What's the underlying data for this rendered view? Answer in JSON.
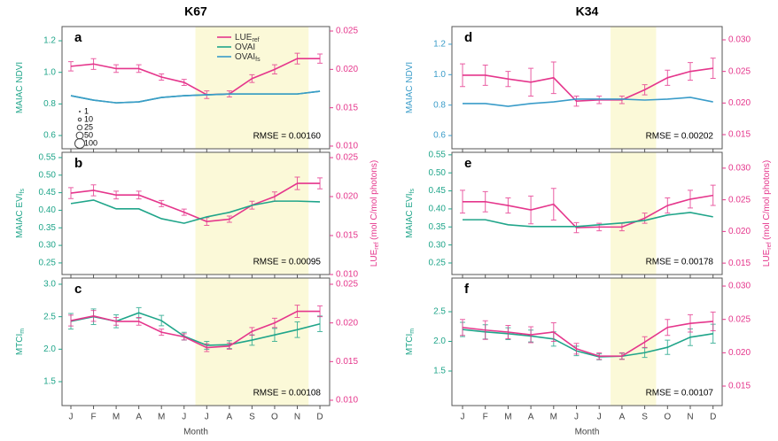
{
  "chart_data": [
    {
      "type": "line",
      "title": "K67",
      "xlabel": "Month",
      "categories": [
        "J",
        "F",
        "M",
        "A",
        "M",
        "J",
        "J",
        "A",
        "S",
        "O",
        "N",
        "D"
      ],
      "panels": [
        {
          "label": "a",
          "ylabel": "MAIAC NDVI",
          "ylim": [
            0.516,
            1.29
          ],
          "yticks": [
            0.6,
            0.8,
            {
              "value": 1.0,
              "label": "1.0"
            },
            1.2
          ],
          "y2lim": [
            0.00965,
            0.02558
          ],
          "y2ticks": [
            {
              "value": 0.01,
              "label": "0.010"
            },
            0.015,
            {
              "value": 0.02,
              "label": "0.020"
            },
            0.025
          ],
          "annotation": "RMSE = 0.00160",
          "legend": true,
          "size_legend": [
            1,
            10,
            25,
            50,
            100
          ],
          "series": [
            {
              "name": "LUE",
              "name_sub": "ref",
              "color": "#e5368c",
              "axis": "y2",
              "values": [
                0.0204,
                0.0207,
                0.0201,
                0.0201,
                0.019,
                0.0183,
                0.0167,
                0.0168,
                0.0188,
                0.02,
                0.0214,
                0.0214
              ],
              "errors": [
                0.0006,
                0.0007,
                0.0005,
                0.0005,
                0.0004,
                0.0004,
                0.0005,
                0.0004,
                0.0005,
                0.0006,
                0.0007,
                0.0006
              ]
            },
            {
              "name": "OVAI",
              "color": "#20a58a",
              "values": [
                0.852,
                0.824,
                0.807,
                0.813,
                0.841,
                0.852,
                0.858,
                0.863,
                0.863,
                0.863,
                0.863,
                0.88
              ]
            },
            {
              "name": "OVAI",
              "name_sub": "fs",
              "color": "#3a9cc9",
              "values": [
                0.852,
                0.824,
                0.807,
                0.813,
                0.841,
                0.852,
                0.858,
                0.863,
                0.863,
                0.863,
                0.863,
                0.88
              ]
            }
          ]
        },
        {
          "label": "b",
          "ylabel": "MAIAC EVI",
          "ylabel_sub": "fs",
          "ylim": [
            0.217,
            0.565
          ],
          "yticks": [
            0.25,
            {
              "value": 0.3,
              "label": "0.30"
            },
            0.35,
            {
              "value": 0.4,
              "label": "0.40"
            },
            0.45,
            {
              "value": 0.5,
              "label": "0.50"
            },
            0.55
          ],
          "y2lim": [
            0.01,
            0.02568
          ],
          "y2ticks": [
            {
              "value": 0.01,
              "label": "0.010"
            },
            0.015,
            {
              "value": 0.02,
              "label": "0.020"
            },
            0.025
          ],
          "y2label": {
            "text": "LUE",
            "sub": "ref",
            "rest": " (mol C/mol photons)"
          },
          "annotation": "RMSE = 0.00095",
          "series": [
            {
              "name": "LUE",
              "name_sub": "ref",
              "color": "#e5368c",
              "axis": "y2",
              "values": [
                0.02045,
                0.0208,
                0.0202,
                0.0202,
                0.0191,
                0.018,
                0.0168,
                0.0171,
                0.0189,
                0.02,
                0.0217,
                0.0217
              ],
              "errors": [
                0.0007,
                0.0007,
                0.0005,
                0.0005,
                0.0004,
                0.0004,
                0.0005,
                0.0004,
                0.0005,
                0.0006,
                0.0008,
                0.0007
              ]
            },
            {
              "name": "OVAI",
              "name_sub": "fs",
              "color": "#20a58a",
              "values": [
                0.419,
                0.429,
                0.404,
                0.404,
                0.376,
                0.363,
                0.381,
                0.394,
                0.414,
                0.426,
                0.426,
                0.424
              ]
            }
          ]
        },
        {
          "label": "c",
          "ylabel": "MTCI",
          "ylabel_sub": "m",
          "ylim": [
            1.132,
            3.095
          ],
          "yticks": [
            1.5,
            {
              "value": 2,
              "label": "2.0"
            },
            2.5,
            {
              "value": 3,
              "label": "3.0"
            }
          ],
          "y2lim": [
            0.00931,
            0.0258
          ],
          "y2ticks": [
            {
              "value": 0.01,
              "label": "0.010"
            },
            0.015,
            {
              "value": 0.02,
              "label": "0.020"
            },
            0.025
          ],
          "annotation": "RMSE = 0.00108",
          "series": [
            {
              "name": "OVAI",
              "name_sub": "fs",
              "color": "#20a58a",
              "values": [
                2.43,
                2.5,
                2.43,
                2.56,
                2.44,
                2.2,
                2.06,
                2.07,
                2.14,
                2.22,
                2.3,
                2.39
              ],
              "errors": [
                0.12,
                0.12,
                0.1,
                0.08,
                0.08,
                0.06,
                0.06,
                0.06,
                0.08,
                0.1,
                0.12,
                0.12
              ]
            },
            {
              "name": "LUE",
              "name_sub": "ref",
              "color": "#e5368c",
              "axis": "y2",
              "values": [
                0.0203,
                0.0209,
                0.0202,
                0.0202,
                0.0188,
                0.0182,
                0.0168,
                0.017,
                0.0189,
                0.02,
                0.0215,
                0.0215
              ],
              "errors": [
                0.0007,
                0.0007,
                0.0005,
                0.0005,
                0.0004,
                0.0004,
                0.0005,
                0.0004,
                0.0005,
                0.0006,
                0.0008,
                0.0007
              ]
            }
          ]
        }
      ]
    },
    {
      "type": "line",
      "title": "K34",
      "xlabel": "Month",
      "categories": [
        "J",
        "F",
        "M",
        "A",
        "M",
        "J",
        "J",
        "A",
        "S",
        "O",
        "N",
        "D"
      ],
      "panels": [
        {
          "label": "d",
          "ylabel": "MAIAC NDVI",
          "ylim": [
            0.513,
            1.316
          ],
          "yticks": [
            0.6,
            0.8,
            {
              "value": 1.0,
              "label": "1.0"
            },
            1.2
          ],
          "y2lim": [
            0.01276,
            0.0321
          ],
          "y2ticks": [
            0.015,
            {
              "value": 0.02,
              "label": "0.020"
            },
            0.025,
            {
              "value": 0.03,
              "label": "0.030"
            }
          ],
          "annotation": "RMSE = 0.00202",
          "series": [
            {
              "name": "LUE",
              "name_sub": "ref",
              "color": "#e5368c",
              "axis": "y2",
              "values": [
                0.0244,
                0.0244,
                0.0238,
                0.0233,
                0.024,
                0.0203,
                0.0205,
                0.0205,
                0.0221,
                0.024,
                0.025,
                0.0255
              ],
              "errors": [
                0.0018,
                0.0016,
                0.0012,
                0.0022,
                0.0025,
                0.0008,
                0.0006,
                0.0006,
                0.0008,
                0.0012,
                0.0014,
                0.0016
              ]
            },
            {
              "name": "OVAI",
              "name_sub": "fs",
              "color": "#3a9cc9",
              "values": [
                0.81,
                0.81,
                0.792,
                0.81,
                0.821,
                0.839,
                0.839,
                0.839,
                0.833,
                0.839,
                0.851,
                0.821
              ]
            }
          ]
        },
        {
          "label": "e",
          "ylabel": "MAIAC EVI",
          "ylabel_sub": "fs",
          "ylim": [
            0.218,
            0.557
          ],
          "yticks": [
            0.25,
            {
              "value": 0.3,
              "label": "0.30"
            },
            0.35,
            {
              "value": 0.4,
              "label": "0.40"
            },
            0.45,
            {
              "value": 0.5,
              "label": "0.50"
            },
            0.55
          ],
          "y2lim": [
            0.0132,
            0.0325
          ],
          "y2ticks": [
            0.015,
            {
              "value": 0.02,
              "label": "0.020"
            },
            0.025,
            {
              "value": 0.03,
              "label": "0.030"
            }
          ],
          "y2label": {
            "text": "LUE",
            "sub": "ref",
            "rest": " (mol C/mol photons)"
          },
          "annotation": "RMSE = 0.00178",
          "series": [
            {
              "name": "LUE",
              "name_sub": "ref",
              "color": "#e5368c",
              "axis": "y2",
              "values": [
                0.0247,
                0.0247,
                0.0241,
                0.0234,
                0.0243,
                0.0206,
                0.0207,
                0.0207,
                0.0221,
                0.0241,
                0.0251,
                0.0257
              ],
              "errors": [
                0.0018,
                0.0016,
                0.0012,
                0.0022,
                0.0025,
                0.0008,
                0.0006,
                0.0006,
                0.0008,
                0.0012,
                0.0014,
                0.0016
              ]
            },
            {
              "name": "OVAI",
              "name_sub": "fs",
              "color": "#20a58a",
              "values": [
                0.37,
                0.37,
                0.356,
                0.351,
                0.351,
                0.351,
                0.356,
                0.361,
                0.368,
                0.383,
                0.39,
                0.378
              ]
            }
          ]
        },
        {
          "label": "f",
          "ylabel": "MTCI",
          "ylabel_sub": "m",
          "ylim": [
            0.918,
            3.067
          ],
          "yticks": [
            1.5,
            {
              "value": 2,
              "label": "2.0"
            },
            2.5
          ],
          "y2lim": [
            0.01208,
            0.0312
          ],
          "y2ticks": [
            0.015,
            {
              "value": 0.02,
              "label": "0.020"
            },
            0.025,
            {
              "value": 0.03,
              "label": "0.030"
            }
          ],
          "annotation": "RMSE = 0.00107",
          "series": [
            {
              "name": "OVAI",
              "name_sub": "fs",
              "color": "#20a58a",
              "values": [
                2.2,
                2.16,
                2.13,
                2.09,
                2.04,
                1.84,
                1.74,
                1.75,
                1.81,
                1.9,
                2.07,
                2.13
              ],
              "errors": [
                0.12,
                0.12,
                0.1,
                0.1,
                0.12,
                0.08,
                0.05,
                0.05,
                0.08,
                0.12,
                0.14,
                0.16
              ]
            },
            {
              "name": "LUE",
              "name_sub": "ref",
              "color": "#e5368c",
              "axis": "y2",
              "values": [
                0.0238,
                0.0234,
                0.0231,
                0.0227,
                0.0231,
                0.0206,
                0.0195,
                0.0195,
                0.0216,
                0.0238,
                0.0244,
                0.0247
              ],
              "errors": [
                0.0012,
                0.0014,
                0.001,
                0.0012,
                0.0014,
                0.0008,
                0.0005,
                0.0005,
                0.0008,
                0.0012,
                0.0013,
                0.0014
              ]
            }
          ]
        }
      ]
    }
  ]
}
